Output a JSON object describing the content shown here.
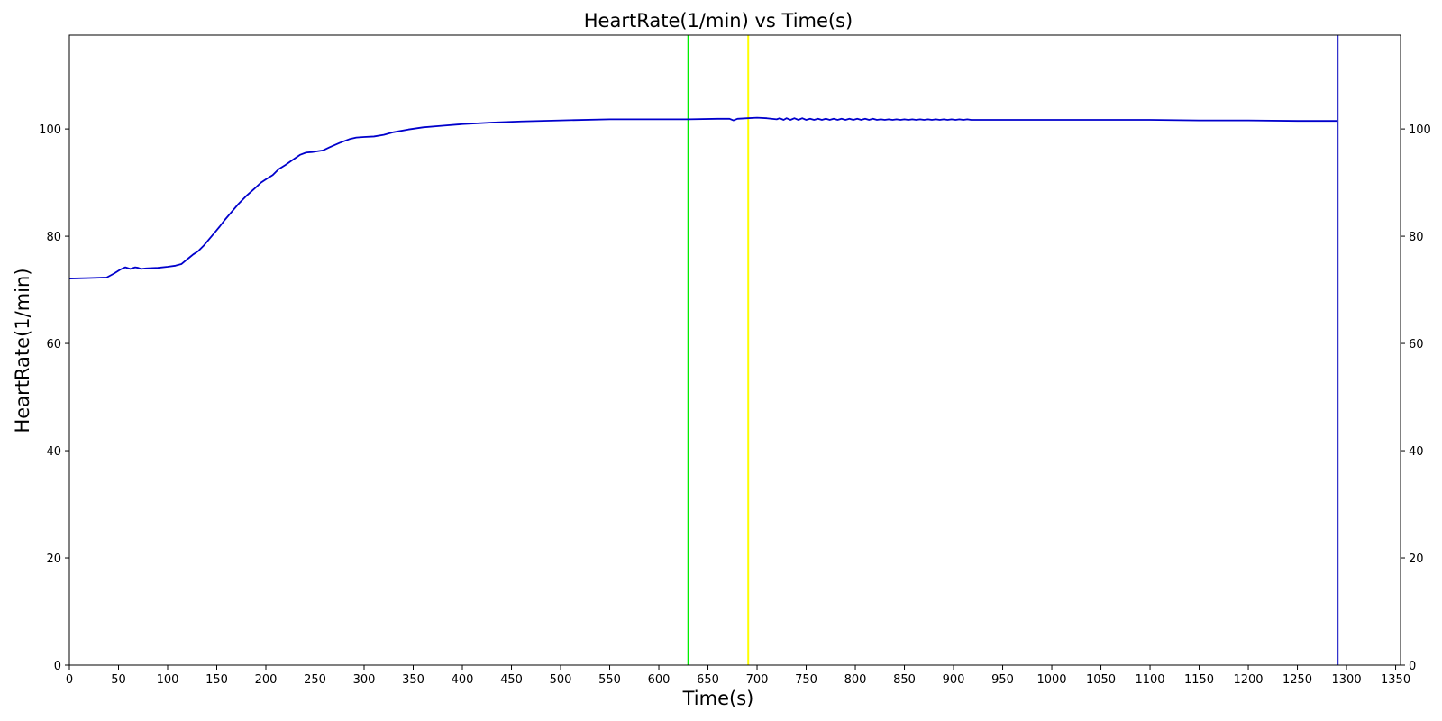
{
  "chart_data": {
    "type": "line",
    "title": "HeartRate(1/min) vs Time(s)",
    "xlabel": "Time(s)",
    "ylabel": "HeartRate(1/min)",
    "xlim": [
      0,
      1355
    ],
    "ylim": [
      0,
      117.5
    ],
    "x_ticks": [
      0,
      50,
      100,
      150,
      200,
      250,
      300,
      350,
      400,
      450,
      500,
      550,
      600,
      650,
      700,
      750,
      800,
      850,
      900,
      950,
      1000,
      1050,
      1100,
      1150,
      1200,
      1250,
      1300,
      1350
    ],
    "y_ticks": [
      0,
      20,
      40,
      60,
      80,
      100
    ],
    "y_ticks_right": true,
    "grid": false,
    "legend": "none",
    "series": [
      {
        "color": "#0000cc",
        "x": [
          0,
          20,
          38,
          45,
          52,
          57,
          62,
          67,
          70,
          73,
          78,
          90,
          100,
          108,
          114,
          118,
          122,
          126,
          131,
          137,
          142,
          148,
          153,
          158,
          165,
          172,
          180,
          188,
          195,
          200,
          207,
          213,
          220,
          227,
          235,
          241,
          247,
          258,
          265,
          275,
          285,
          292,
          300,
          310,
          320,
          330,
          345,
          360,
          380,
          400,
          430,
          460,
          500,
          550,
          600,
          630,
          660,
          672,
          676,
          680,
          690,
          700,
          710,
          720,
          723,
          727,
          730,
          734,
          738,
          742,
          746,
          750,
          754,
          758,
          762,
          766,
          770,
          774,
          778,
          782,
          786,
          790,
          794,
          798,
          802,
          806,
          810,
          814,
          818,
          822,
          826,
          830,
          834,
          838,
          842,
          846,
          850,
          854,
          858,
          862,
          866,
          870,
          874,
          878,
          882,
          886,
          890,
          894,
          898,
          902,
          906,
          910,
          914,
          918,
          920,
          950,
          1000,
          1050,
          1100,
          1150,
          1200,
          1250,
          1290
        ],
        "y": [
          72.1,
          72.2,
          72.3,
          73.0,
          73.8,
          74.2,
          73.9,
          74.2,
          74.1,
          73.9,
          74.0,
          74.1,
          74.3,
          74.5,
          74.8,
          75.4,
          76.0,
          76.6,
          77.2,
          78.3,
          79.4,
          80.7,
          81.8,
          83.0,
          84.5,
          86.0,
          87.5,
          88.8,
          90.0,
          90.6,
          91.4,
          92.5,
          93.3,
          94.2,
          95.2,
          95.6,
          95.7,
          96.0,
          96.6,
          97.4,
          98.1,
          98.4,
          98.5,
          98.6,
          98.9,
          99.4,
          99.9,
          100.3,
          100.6,
          100.9,
          101.2,
          101.4,
          101.6,
          101.8,
          101.8,
          101.8,
          101.9,
          101.9,
          101.6,
          101.9,
          102.0,
          102.1,
          102.0,
          101.8,
          102.0,
          101.7,
          102.0,
          101.7,
          102.0,
          101.7,
          102.0,
          101.7,
          101.9,
          101.7,
          101.9,
          101.7,
          101.9,
          101.7,
          101.9,
          101.7,
          101.9,
          101.7,
          101.9,
          101.7,
          101.9,
          101.7,
          101.9,
          101.7,
          101.9,
          101.7,
          101.8,
          101.7,
          101.8,
          101.7,
          101.8,
          101.7,
          101.8,
          101.7,
          101.8,
          101.7,
          101.8,
          101.7,
          101.8,
          101.7,
          101.8,
          101.7,
          101.8,
          101.7,
          101.8,
          101.7,
          101.8,
          101.7,
          101.8,
          101.7,
          101.7,
          101.7,
          101.7,
          101.7,
          101.7,
          101.6,
          101.6,
          101.5,
          101.5
        ]
      }
    ],
    "vertical_lines": [
      {
        "x": 630,
        "color": "#00ee00"
      },
      {
        "x": 691,
        "color": "#ffff00"
      },
      {
        "x": 1291,
        "color": "#3333cc"
      }
    ]
  }
}
